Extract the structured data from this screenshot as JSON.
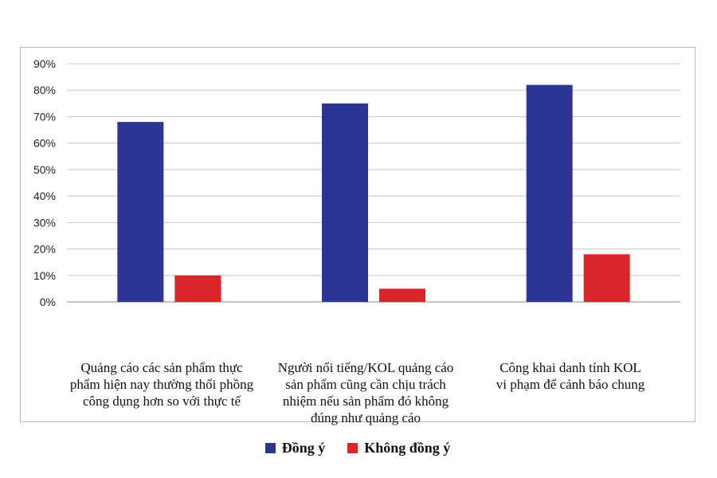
{
  "chart_data": {
    "type": "bar",
    "categories": [
      "Quảng cáo các sản phẩm thực phẩm hiện nay thường thổi phồng công dụng hơn so với thực tế",
      "Người nổi tiếng/KOL quảng cáo sản phẩm cũng cần chịu trách nhiệm nếu sản phẩm đó không đúng như quảng cáo",
      "Công khai danh tính KOL vi phạm để cảnh báo chung"
    ],
    "category_lines": [
      [
        "Quảng cáo các sản phẩm thực",
        "phẩm hiện nay thường thổi phồng",
        "công dụng hơn so với thực tế"
      ],
      [
        "Người nổi tiếng/KOL quảng cáo",
        "sản phẩm cũng cần chịu trách",
        "nhiệm nếu sản phẩm đó không",
        "đúng như quảng cáo"
      ],
      [
        "Công khai danh tính KOL",
        "vi phạm để cảnh báo chung"
      ]
    ],
    "series": [
      {
        "name": "Đồng ý",
        "color": "#2b3594",
        "values": [
          68,
          75,
          82
        ]
      },
      {
        "name": "Không đồng ý",
        "color": "#d8262b",
        "values": [
          10,
          5,
          18
        ]
      }
    ],
    "yticks": [
      "0%",
      "10%",
      "20%",
      "30%",
      "40%",
      "50%",
      "60%",
      "70%",
      "80%",
      "90%"
    ],
    "ylim": [
      0,
      90
    ],
    "grid": true,
    "legend_position": "bottom"
  }
}
